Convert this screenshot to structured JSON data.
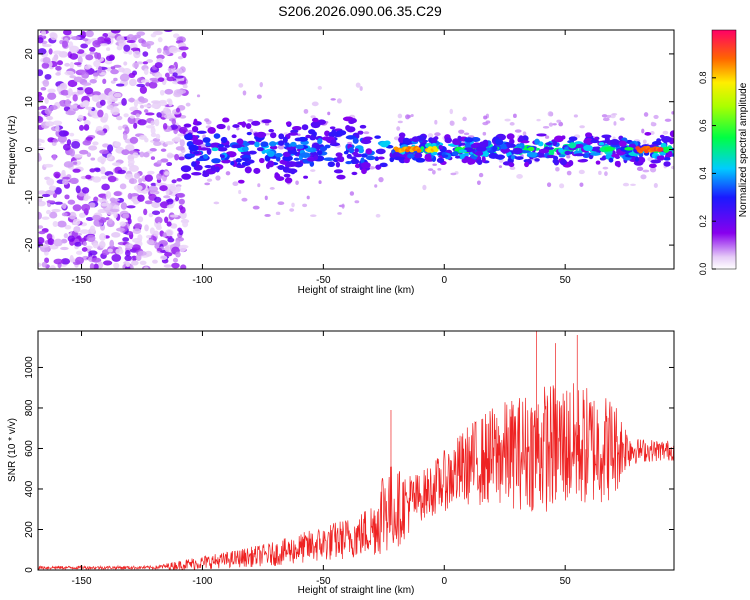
{
  "figure_title": "S206.2026.090.06.35.C29",
  "chart_data": [
    {
      "type": "heatmap",
      "title": "",
      "xlabel": "Height of straight line (km)",
      "ylabel": "Frequency (Hz)",
      "xlim": [
        -168,
        95
      ],
      "ylim": [
        -25,
        25
      ],
      "xticks": [
        -150,
        -100,
        -50,
        0,
        50
      ],
      "yticks": [
        -20,
        -10,
        0,
        10,
        20
      ],
      "colorbar": {
        "label": "Normalized spectral amplitude",
        "range": [
          0.0,
          1.0
        ],
        "ticks": [
          0.0,
          0.2,
          0.4,
          0.6,
          0.8
        ],
        "colormap": "rainbow (purple-blue-cyan-green-yellow-red)"
      },
      "description_data": {
        "noise_region_x": [
          -168,
          -107
        ],
        "signal_band_center_hz": 0,
        "bright_segments": [
          {
            "x_start": -20,
            "x_end": -10,
            "amplitude": 0.9
          },
          {
            "x_start": -7,
            "x_end": -3,
            "amplitude": 0.85
          },
          {
            "x_start": 80,
            "x_end": 90,
            "amplitude": 0.95
          }
        ]
      }
    },
    {
      "type": "line",
      "title": "",
      "xlabel": "Height of straight line (km)",
      "ylabel": "SNR (10 * v/v)",
      "xlim": [
        -168,
        95
      ],
      "ylim": [
        0,
        1180
      ],
      "xticks": [
        -150,
        -100,
        -50,
        0,
        50
      ],
      "yticks": [
        0,
        200,
        400,
        600,
        800,
        1000
      ],
      "color": "#ee2222",
      "envelope": {
        "x": [
          -168,
          -120,
          -105,
          -90,
          -70,
          -50,
          -35,
          -28,
          -25,
          -20,
          -10,
          0,
          10,
          20,
          30,
          40,
          50,
          60,
          70,
          75,
          80,
          95
        ],
        "mid": [
          12,
          12,
          30,
          50,
          80,
          130,
          170,
          220,
          320,
          300,
          360,
          440,
          520,
          560,
          580,
          600,
          620,
          610,
          600,
          610,
          590,
          590
        ],
        "amp": [
          8,
          8,
          30,
          40,
          60,
          90,
          110,
          150,
          250,
          200,
          120,
          150,
          200,
          250,
          280,
          320,
          320,
          300,
          260,
          120,
          60,
          50
        ]
      },
      "spikes": [
        {
          "x": -22,
          "y": 790
        },
        {
          "x": 38,
          "y": 1180
        },
        {
          "x": 46,
          "y": 1120
        },
        {
          "x": 55,
          "y": 1160
        }
      ]
    }
  ]
}
